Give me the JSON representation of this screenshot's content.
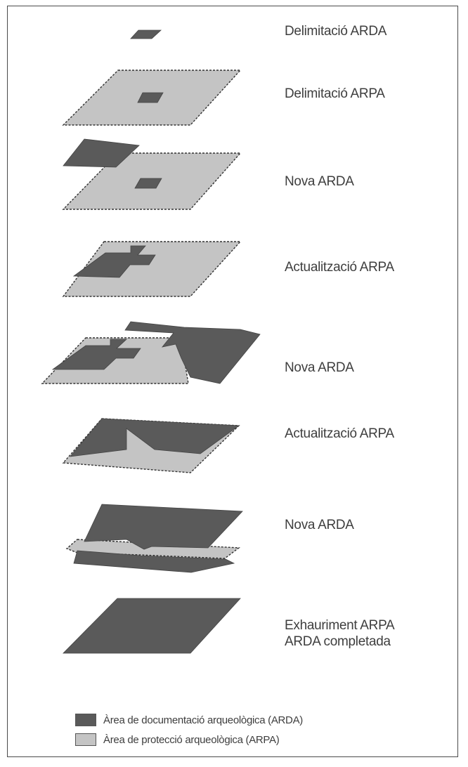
{
  "colors": {
    "arda": "#5a5a5a",
    "arpa": "#c4c4c4",
    "frame": "#4a4a4a",
    "text": "#3e3e3e"
  },
  "stages": [
    {
      "label": "Delimitació ARDA"
    },
    {
      "label": "Delimitació ARPA"
    },
    {
      "label": "Nova ARDA"
    },
    {
      "label": "Actualització ARPA"
    },
    {
      "label": "Nova ARDA"
    },
    {
      "label": "Actualització ARPA"
    },
    {
      "label": "Nova ARDA"
    },
    {
      "label": "Exhauriment ARPA",
      "label2": "ARDA completada"
    }
  ],
  "legend": {
    "arda": "Àrea de documentació arqueològica (ARDA)",
    "arpa": "Àrea de protecció arqueològica (ARPA)"
  }
}
